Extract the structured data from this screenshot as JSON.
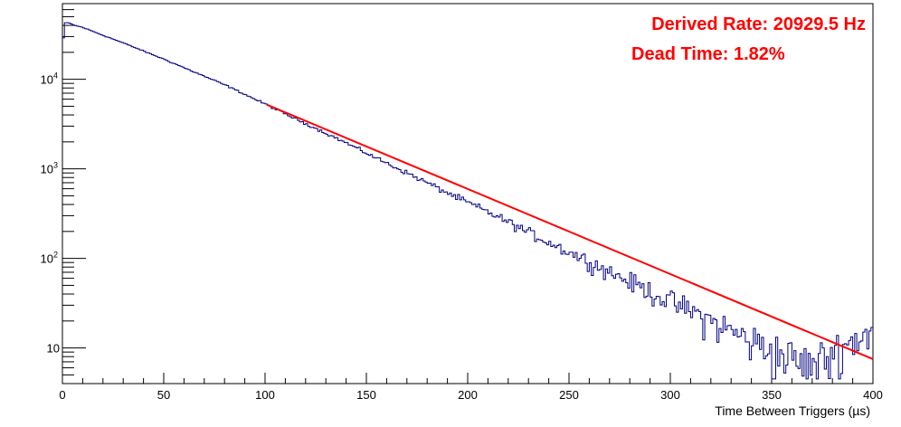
{
  "chart_data": {
    "type": "line",
    "title": "",
    "xlabel": "Time Between Triggers (µs)",
    "ylabel": "",
    "xlim": [
      0,
      400
    ],
    "ylim": [
      4,
      70000
    ],
    "y_scale": "log",
    "grid": false,
    "x_ticks": [
      0,
      50,
      100,
      150,
      200,
      250,
      300,
      350,
      400
    ],
    "x_tick_labels": [
      "0",
      "50",
      "100",
      "150",
      "200",
      "250",
      "300",
      "350",
      "400"
    ],
    "y_tick_labels": [
      {
        "value": 10,
        "base": "10",
        "exp": ""
      },
      {
        "value": 100,
        "base": "10",
        "exp": "2"
      },
      {
        "value": 1000,
        "base": "10",
        "exp": "3"
      },
      {
        "value": 10000,
        "base": "10",
        "exp": "4"
      }
    ],
    "annotations": [
      {
        "text": "Derived Rate: 20929.5 Hz",
        "color": "#ff0000"
      },
      {
        "text": "Dead Time: 1.82%",
        "color": "#ff0000"
      }
    ],
    "series": [
      {
        "kind": "histogram",
        "color": "#000080",
        "x": [
          0,
          1,
          2,
          4,
          6,
          10,
          20,
          30,
          40,
          50,
          60,
          70,
          80,
          90,
          100,
          110,
          120,
          130,
          140,
          150,
          160,
          170,
          180,
          190,
          200,
          210,
          220,
          230,
          240,
          250,
          260,
          270,
          280,
          290,
          300,
          310,
          320,
          330,
          340,
          350,
          360,
          370,
          380,
          390,
          400
        ],
        "y": [
          20000,
          42000,
          43000,
          42000,
          40000,
          38000,
          31000,
          25500,
          20700,
          16800,
          13500,
          10800,
          8700,
          6800,
          5300,
          4100,
          3200,
          2500,
          1950,
          1500,
          1160,
          900,
          700,
          540,
          420,
          330,
          255,
          195,
          152,
          118,
          92,
          71,
          55,
          43,
          33,
          26,
          20,
          15.5,
          12,
          9.5,
          7.5,
          6,
          9,
          12,
          16
        ]
      },
      {
        "kind": "fit",
        "color": "#ff0000",
        "x": [
          101,
          400
        ],
        "y": [
          5200,
          7.5
        ]
      }
    ]
  }
}
